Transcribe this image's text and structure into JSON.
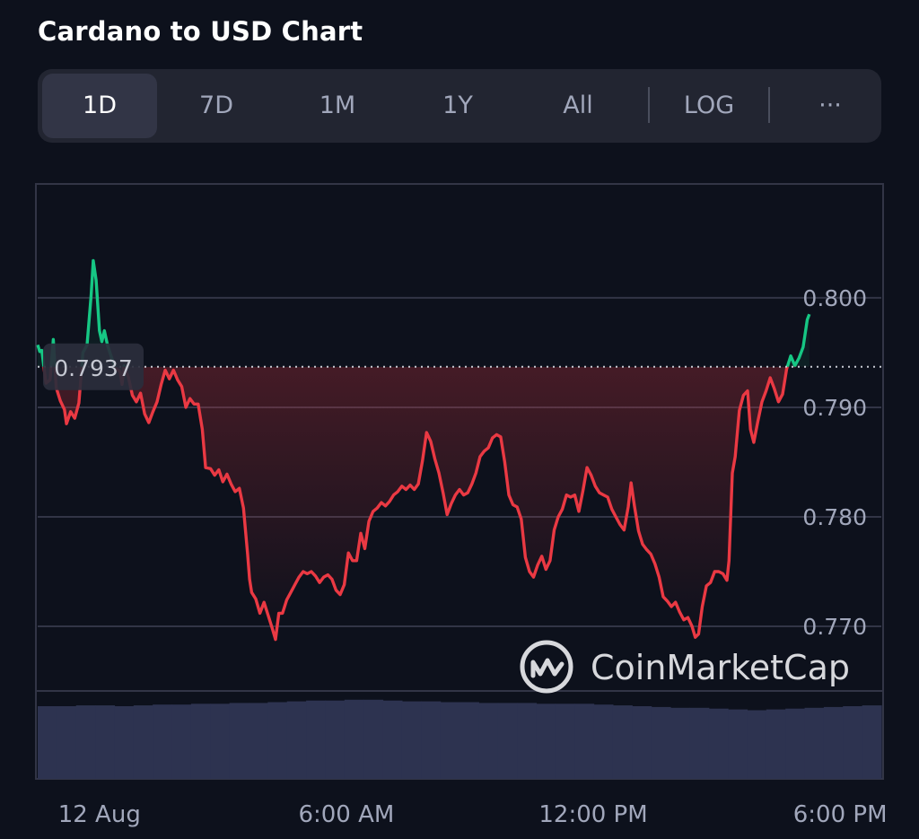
{
  "title": "Cardano to USD Chart",
  "tabs": [
    {
      "label": "1D",
      "active": true
    },
    {
      "label": "7D"
    },
    {
      "label": "1M"
    },
    {
      "label": "1Y"
    },
    {
      "label": "All"
    },
    {
      "label": "LOG"
    },
    {
      "label": "···"
    }
  ],
  "watermark": "CoinMarketCap",
  "colors": {
    "up": "#16c784",
    "down": "#ea3943",
    "background": "#0d111c",
    "grid": "#323546",
    "volume": "#2d3350"
  },
  "chart_data": {
    "type": "line",
    "reference_value": 0.7937,
    "reference_label": "0.7937",
    "y_ticks": [
      0.8,
      0.79,
      0.78,
      0.77
    ],
    "y_tick_labels": [
      "0.800",
      "0.790",
      "0.780",
      "0.770"
    ],
    "ylim": [
      0.7641,
      0.8104
    ],
    "x_ticks": [
      {
        "label": "12 Aug",
        "h": 0
      },
      {
        "label": "6:00 AM",
        "h": 6
      },
      {
        "label": "12:00 PM",
        "h": 12
      },
      {
        "label": "6:00 PM",
        "h": 18
      }
    ],
    "xlim_hours": [
      -1.5,
      19
    ],
    "points": [
      [
        -1.5,
        0.7957
      ],
      [
        -1.45,
        0.7951
      ],
      [
        -1.4,
        0.7952
      ],
      [
        -1.3,
        0.7922
      ],
      [
        -1.2,
        0.7925
      ],
      [
        -1.12,
        0.7962
      ],
      [
        -1.05,
        0.7918
      ],
      [
        -0.95,
        0.7906
      ],
      [
        -0.85,
        0.7898
      ],
      [
        -0.8,
        0.7885
      ],
      [
        -0.7,
        0.7896
      ],
      [
        -0.6,
        0.789
      ],
      [
        -0.5,
        0.7904
      ],
      [
        -0.4,
        0.795
      ],
      [
        -0.3,
        0.7957
      ],
      [
        -0.2,
        0.8003
      ],
      [
        -0.15,
        0.8034
      ],
      [
        -0.08,
        0.8016
      ],
      [
        0.0,
        0.797
      ],
      [
        0.06,
        0.796
      ],
      [
        0.12,
        0.797
      ],
      [
        0.2,
        0.7956
      ],
      [
        0.3,
        0.7945
      ],
      [
        0.4,
        0.7935
      ],
      [
        0.5,
        0.7933
      ],
      [
        0.55,
        0.7921
      ],
      [
        0.6,
        0.7938
      ],
      [
        0.7,
        0.7928
      ],
      [
        0.8,
        0.7911
      ],
      [
        0.9,
        0.7905
      ],
      [
        1.0,
        0.7913
      ],
      [
        1.1,
        0.7894
      ],
      [
        1.2,
        0.7886
      ],
      [
        1.3,
        0.7896
      ],
      [
        1.4,
        0.7905
      ],
      [
        1.5,
        0.7921
      ],
      [
        1.6,
        0.7934
      ],
      [
        1.7,
        0.7926
      ],
      [
        1.8,
        0.7934
      ],
      [
        1.9,
        0.7925
      ],
      [
        2.0,
        0.7919
      ],
      [
        2.1,
        0.79
      ],
      [
        2.2,
        0.7908
      ],
      [
        2.3,
        0.7903
      ],
      [
        2.4,
        0.7903
      ],
      [
        2.5,
        0.788
      ],
      [
        2.58,
        0.7845
      ],
      [
        2.7,
        0.7844
      ],
      [
        2.8,
        0.7838
      ],
      [
        2.9,
        0.7843
      ],
      [
        3.0,
        0.7832
      ],
      [
        3.1,
        0.7839
      ],
      [
        3.2,
        0.783
      ],
      [
        3.3,
        0.7823
      ],
      [
        3.4,
        0.7826
      ],
      [
        3.5,
        0.7808
      ],
      [
        3.6,
        0.7766
      ],
      [
        3.65,
        0.7743
      ],
      [
        3.7,
        0.7731
      ],
      [
        3.8,
        0.7725
      ],
      [
        3.9,
        0.7712
      ],
      [
        4.0,
        0.7722
      ],
      [
        4.1,
        0.771
      ],
      [
        4.2,
        0.7698
      ],
      [
        4.28,
        0.7688
      ],
      [
        4.36,
        0.7712
      ],
      [
        4.45,
        0.7712
      ],
      [
        4.55,
        0.7724
      ],
      [
        4.65,
        0.7731
      ],
      [
        4.75,
        0.7738
      ],
      [
        4.85,
        0.7745
      ],
      [
        4.95,
        0.775
      ],
      [
        5.05,
        0.7748
      ],
      [
        5.15,
        0.775
      ],
      [
        5.25,
        0.7746
      ],
      [
        5.35,
        0.774
      ],
      [
        5.45,
        0.7745
      ],
      [
        5.55,
        0.7747
      ],
      [
        5.65,
        0.7743
      ],
      [
        5.75,
        0.7733
      ],
      [
        5.85,
        0.7729
      ],
      [
        5.95,
        0.7738
      ],
      [
        6.05,
        0.7767
      ],
      [
        6.15,
        0.776
      ],
      [
        6.25,
        0.776
      ],
      [
        6.35,
        0.7785
      ],
      [
        6.45,
        0.7771
      ],
      [
        6.55,
        0.7796
      ],
      [
        6.65,
        0.7805
      ],
      [
        6.75,
        0.7808
      ],
      [
        6.85,
        0.7813
      ],
      [
        6.95,
        0.781
      ],
      [
        7.05,
        0.7814
      ],
      [
        7.15,
        0.782
      ],
      [
        7.25,
        0.7823
      ],
      [
        7.35,
        0.7828
      ],
      [
        7.45,
        0.7825
      ],
      [
        7.55,
        0.7829
      ],
      [
        7.65,
        0.7825
      ],
      [
        7.75,
        0.783
      ],
      [
        7.85,
        0.7851
      ],
      [
        7.95,
        0.7877
      ],
      [
        8.05,
        0.7869
      ],
      [
        8.15,
        0.7853
      ],
      [
        8.25,
        0.784
      ],
      [
        8.35,
        0.7822
      ],
      [
        8.45,
        0.7802
      ],
      [
        8.55,
        0.7812
      ],
      [
        8.65,
        0.782
      ],
      [
        8.75,
        0.7825
      ],
      [
        8.85,
        0.782
      ],
      [
        8.95,
        0.7822
      ],
      [
        9.05,
        0.783
      ],
      [
        9.15,
        0.784
      ],
      [
        9.25,
        0.7855
      ],
      [
        9.35,
        0.786
      ],
      [
        9.45,
        0.7863
      ],
      [
        9.55,
        0.7872
      ],
      [
        9.65,
        0.7875
      ],
      [
        9.75,
        0.7873
      ],
      [
        9.85,
        0.785
      ],
      [
        9.95,
        0.782
      ],
      [
        10.05,
        0.7811
      ],
      [
        10.15,
        0.7809
      ],
      [
        10.25,
        0.7798
      ],
      [
        10.35,
        0.7763
      ],
      [
        10.45,
        0.775
      ],
      [
        10.55,
        0.7745
      ],
      [
        10.65,
        0.7756
      ],
      [
        10.75,
        0.7764
      ],
      [
        10.85,
        0.7752
      ],
      [
        10.95,
        0.776
      ],
      [
        11.05,
        0.7788
      ],
      [
        11.15,
        0.78
      ],
      [
        11.25,
        0.7807
      ],
      [
        11.35,
        0.782
      ],
      [
        11.45,
        0.7818
      ],
      [
        11.55,
        0.782
      ],
      [
        11.65,
        0.7805
      ],
      [
        11.75,
        0.7824
      ],
      [
        11.85,
        0.7845
      ],
      [
        11.95,
        0.7838
      ],
      [
        12.05,
        0.7828
      ],
      [
        12.15,
        0.7822
      ],
      [
        12.25,
        0.782
      ],
      [
        12.35,
        0.7818
      ],
      [
        12.45,
        0.7807
      ],
      [
        12.55,
        0.78
      ],
      [
        12.65,
        0.7793
      ],
      [
        12.75,
        0.7788
      ],
      [
        12.85,
        0.7809
      ],
      [
        12.92,
        0.7831
      ],
      [
        13.0,
        0.781
      ],
      [
        13.1,
        0.7787
      ],
      [
        13.2,
        0.7775
      ],
      [
        13.3,
        0.777
      ],
      [
        13.4,
        0.7766
      ],
      [
        13.5,
        0.7757
      ],
      [
        13.6,
        0.7745
      ],
      [
        13.7,
        0.7727
      ],
      [
        13.8,
        0.7723
      ],
      [
        13.9,
        0.7718
      ],
      [
        14.0,
        0.7722
      ],
      [
        14.1,
        0.7713
      ],
      [
        14.2,
        0.7706
      ],
      [
        14.3,
        0.7708
      ],
      [
        14.4,
        0.77
      ],
      [
        14.48,
        0.769
      ],
      [
        14.56,
        0.7693
      ],
      [
        14.65,
        0.7718
      ],
      [
        14.75,
        0.7737
      ],
      [
        14.85,
        0.774
      ],
      [
        14.95,
        0.775
      ],
      [
        15.05,
        0.775
      ],
      [
        15.15,
        0.7748
      ],
      [
        15.25,
        0.7742
      ],
      [
        15.3,
        0.776
      ],
      [
        15.38,
        0.784
      ],
      [
        15.45,
        0.7855
      ],
      [
        15.55,
        0.7897
      ],
      [
        15.65,
        0.7911
      ],
      [
        15.75,
        0.7915
      ],
      [
        15.82,
        0.788
      ],
      [
        15.9,
        0.7868
      ],
      [
        16.0,
        0.7887
      ],
      [
        16.1,
        0.7905
      ],
      [
        16.2,
        0.7915
      ],
      [
        16.3,
        0.7927
      ],
      [
        16.4,
        0.7917
      ],
      [
        16.5,
        0.7905
      ],
      [
        16.6,
        0.7912
      ],
      [
        16.7,
        0.7935
      ],
      [
        16.8,
        0.7947
      ],
      [
        16.9,
        0.7938
      ],
      [
        17.0,
        0.7945
      ],
      [
        17.1,
        0.7955
      ],
      [
        17.2,
        0.798
      ],
      [
        17.25,
        0.7985
      ]
    ],
    "volume": [
      0.9,
      0.9,
      0.91,
      0.91,
      0.9,
      0.91,
      0.92,
      0.92,
      0.93,
      0.93,
      0.94,
      0.94,
      0.95,
      0.96,
      0.97,
      0.97,
      0.98,
      0.98,
      0.97,
      0.96,
      0.96,
      0.95,
      0.95,
      0.94,
      0.94,
      0.94,
      0.93,
      0.93,
      0.93,
      0.92,
      0.91,
      0.9,
      0.89,
      0.88,
      0.88,
      0.87,
      0.86,
      0.85,
      0.86,
      0.87,
      0.88,
      0.89,
      0.9,
      0.91
    ]
  }
}
